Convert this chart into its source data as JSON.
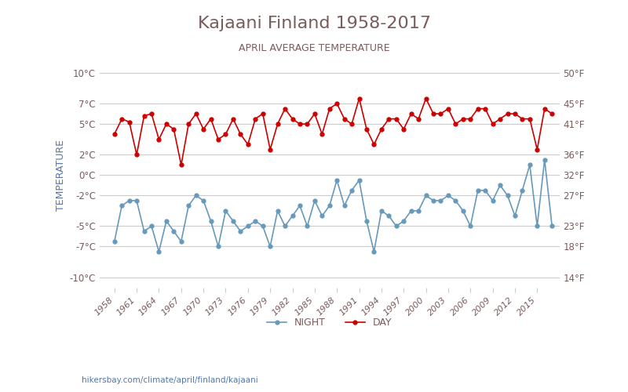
{
  "title": "Kajaani Finland 1958-2017",
  "subtitle": "APRIL AVERAGE TEMPERATURE",
  "ylabel": "TEMPERATURE",
  "footer": "hikersbay.com/climate/april/finland/kajaani",
  "x_years": [
    1958,
    1961,
    1964,
    1967,
    1970,
    1973,
    1976,
    1979,
    1982,
    1985,
    1988,
    1991,
    1994,
    1997,
    2000,
    2003,
    2006,
    2009,
    2012,
    2015
  ],
  "years": [
    1958,
    1959,
    1960,
    1961,
    1962,
    1963,
    1964,
    1965,
    1966,
    1967,
    1968,
    1969,
    1970,
    1971,
    1972,
    1973,
    1974,
    1975,
    1976,
    1977,
    1978,
    1979,
    1980,
    1981,
    1982,
    1983,
    1984,
    1985,
    1986,
    1987,
    1988,
    1989,
    1990,
    1991,
    1992,
    1993,
    1994,
    1995,
    1996,
    1997,
    1998,
    1999,
    2000,
    2001,
    2002,
    2003,
    2004,
    2005,
    2006,
    2007,
    2008,
    2009,
    2010,
    2011,
    2012,
    2013,
    2014,
    2015,
    2016,
    2017
  ],
  "day_temps": [
    4.0,
    5.5,
    5.2,
    2.0,
    5.8,
    6.0,
    3.5,
    5.0,
    4.5,
    1.0,
    5.0,
    6.0,
    4.5,
    5.5,
    3.5,
    4.0,
    5.5,
    4.0,
    3.0,
    5.5,
    6.0,
    2.5,
    5.0,
    6.5,
    5.5,
    5.0,
    5.0,
    6.0,
    4.0,
    6.5,
    7.0,
    5.5,
    5.0,
    7.5,
    4.5,
    3.0,
    4.5,
    5.5,
    5.5,
    4.5,
    6.0,
    5.5,
    7.5,
    6.0,
    6.0,
    6.5,
    5.0,
    5.5,
    5.5,
    6.5,
    6.5,
    5.0,
    5.5,
    6.0,
    6.0,
    5.5,
    5.5,
    2.5,
    6.5,
    6.0
  ],
  "night_temps": [
    -6.5,
    -3.0,
    -2.5,
    -2.5,
    -5.5,
    -5.0,
    -7.5,
    -4.5,
    -5.5,
    -6.5,
    -3.0,
    -2.0,
    -2.5,
    -4.5,
    -7.0,
    -3.5,
    -4.5,
    -5.5,
    -5.0,
    -4.5,
    -5.0,
    -7.0,
    -3.5,
    -5.0,
    -4.0,
    -3.0,
    -5.0,
    -2.5,
    -4.0,
    -3.0,
    -0.5,
    -3.0,
    -1.5,
    -0.5,
    -4.5,
    -7.5,
    -3.5,
    -4.0,
    -5.0,
    -4.5,
    -3.5,
    -3.5,
    -2.0,
    -2.5,
    -2.5,
    -2.0,
    -2.5,
    -3.5,
    -5.0,
    -1.5,
    -1.5,
    -2.5,
    -1.0,
    -2.0,
    -4.0,
    -1.5,
    1.0,
    -5.0,
    1.5,
    -5.0
  ],
  "day_color": "#cc0000",
  "night_color": "#6699bb",
  "background_color": "#ffffff",
  "grid_color": "#cccccc",
  "title_color": "#7a5c5c",
  "subtitle_color": "#7a5c5c",
  "ylabel_color": "#5577aa",
  "tick_color": "#7a5c5c",
  "footer_color": "#5577aa",
  "ylim": [
    -11,
    11
  ],
  "yticks_c": [
    -10,
    -7,
    -5,
    -2,
    0,
    2,
    5,
    7,
    10
  ],
  "yticks_f": [
    14,
    18,
    23,
    27,
    32,
    36,
    41,
    45,
    50
  ]
}
